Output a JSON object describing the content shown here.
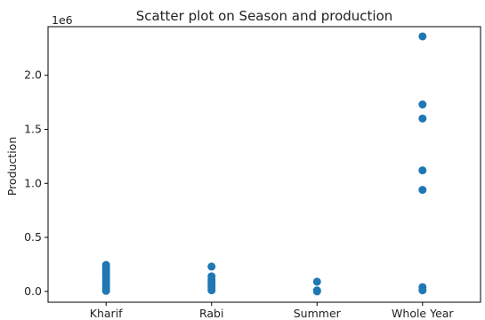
{
  "chart_data": {
    "type": "scatter",
    "title": "Scatter plot on Season and production",
    "xlabel": "",
    "ylabel": "Production",
    "offset_label": "1e6",
    "categories": [
      "Kharif",
      "Rabi",
      "Summer",
      "Whole Year"
    ],
    "ylim": [
      -0.1,
      2.45
    ],
    "yticks": [
      0.0,
      0.5,
      1.0,
      1.5,
      2.0
    ],
    "ytick_labels": [
      "0.0",
      "0.5",
      "1.0",
      "1.5",
      "2.0"
    ],
    "color": "#1f77b4",
    "grid": false,
    "points": [
      {
        "x": "Kharif",
        "y": 0.245
      },
      {
        "x": "Kharif",
        "y": 0.225
      },
      {
        "x": "Kharif",
        "y": 0.2
      },
      {
        "x": "Kharif",
        "y": 0.175
      },
      {
        "x": "Kharif",
        "y": 0.15
      },
      {
        "x": "Kharif",
        "y": 0.125
      },
      {
        "x": "Kharif",
        "y": 0.1
      },
      {
        "x": "Kharif",
        "y": 0.075
      },
      {
        "x": "Kharif",
        "y": 0.05
      },
      {
        "x": "Kharif",
        "y": 0.025
      },
      {
        "x": "Kharif",
        "y": 0.005
      },
      {
        "x": "Rabi",
        "y": 0.23
      },
      {
        "x": "Rabi",
        "y": 0.14
      },
      {
        "x": "Rabi",
        "y": 0.11
      },
      {
        "x": "Rabi",
        "y": 0.085
      },
      {
        "x": "Rabi",
        "y": 0.06
      },
      {
        "x": "Rabi",
        "y": 0.035
      },
      {
        "x": "Rabi",
        "y": 0.01
      },
      {
        "x": "Summer",
        "y": 0.09
      },
      {
        "x": "Summer",
        "y": 0.01
      },
      {
        "x": "Summer",
        "y": 0.0
      },
      {
        "x": "Whole Year",
        "y": 2.36
      },
      {
        "x": "Whole Year",
        "y": 1.73
      },
      {
        "x": "Whole Year",
        "y": 1.6
      },
      {
        "x": "Whole Year",
        "y": 1.12
      },
      {
        "x": "Whole Year",
        "y": 0.94
      },
      {
        "x": "Whole Year",
        "y": 0.04
      },
      {
        "x": "Whole Year",
        "y": 0.01
      }
    ]
  }
}
